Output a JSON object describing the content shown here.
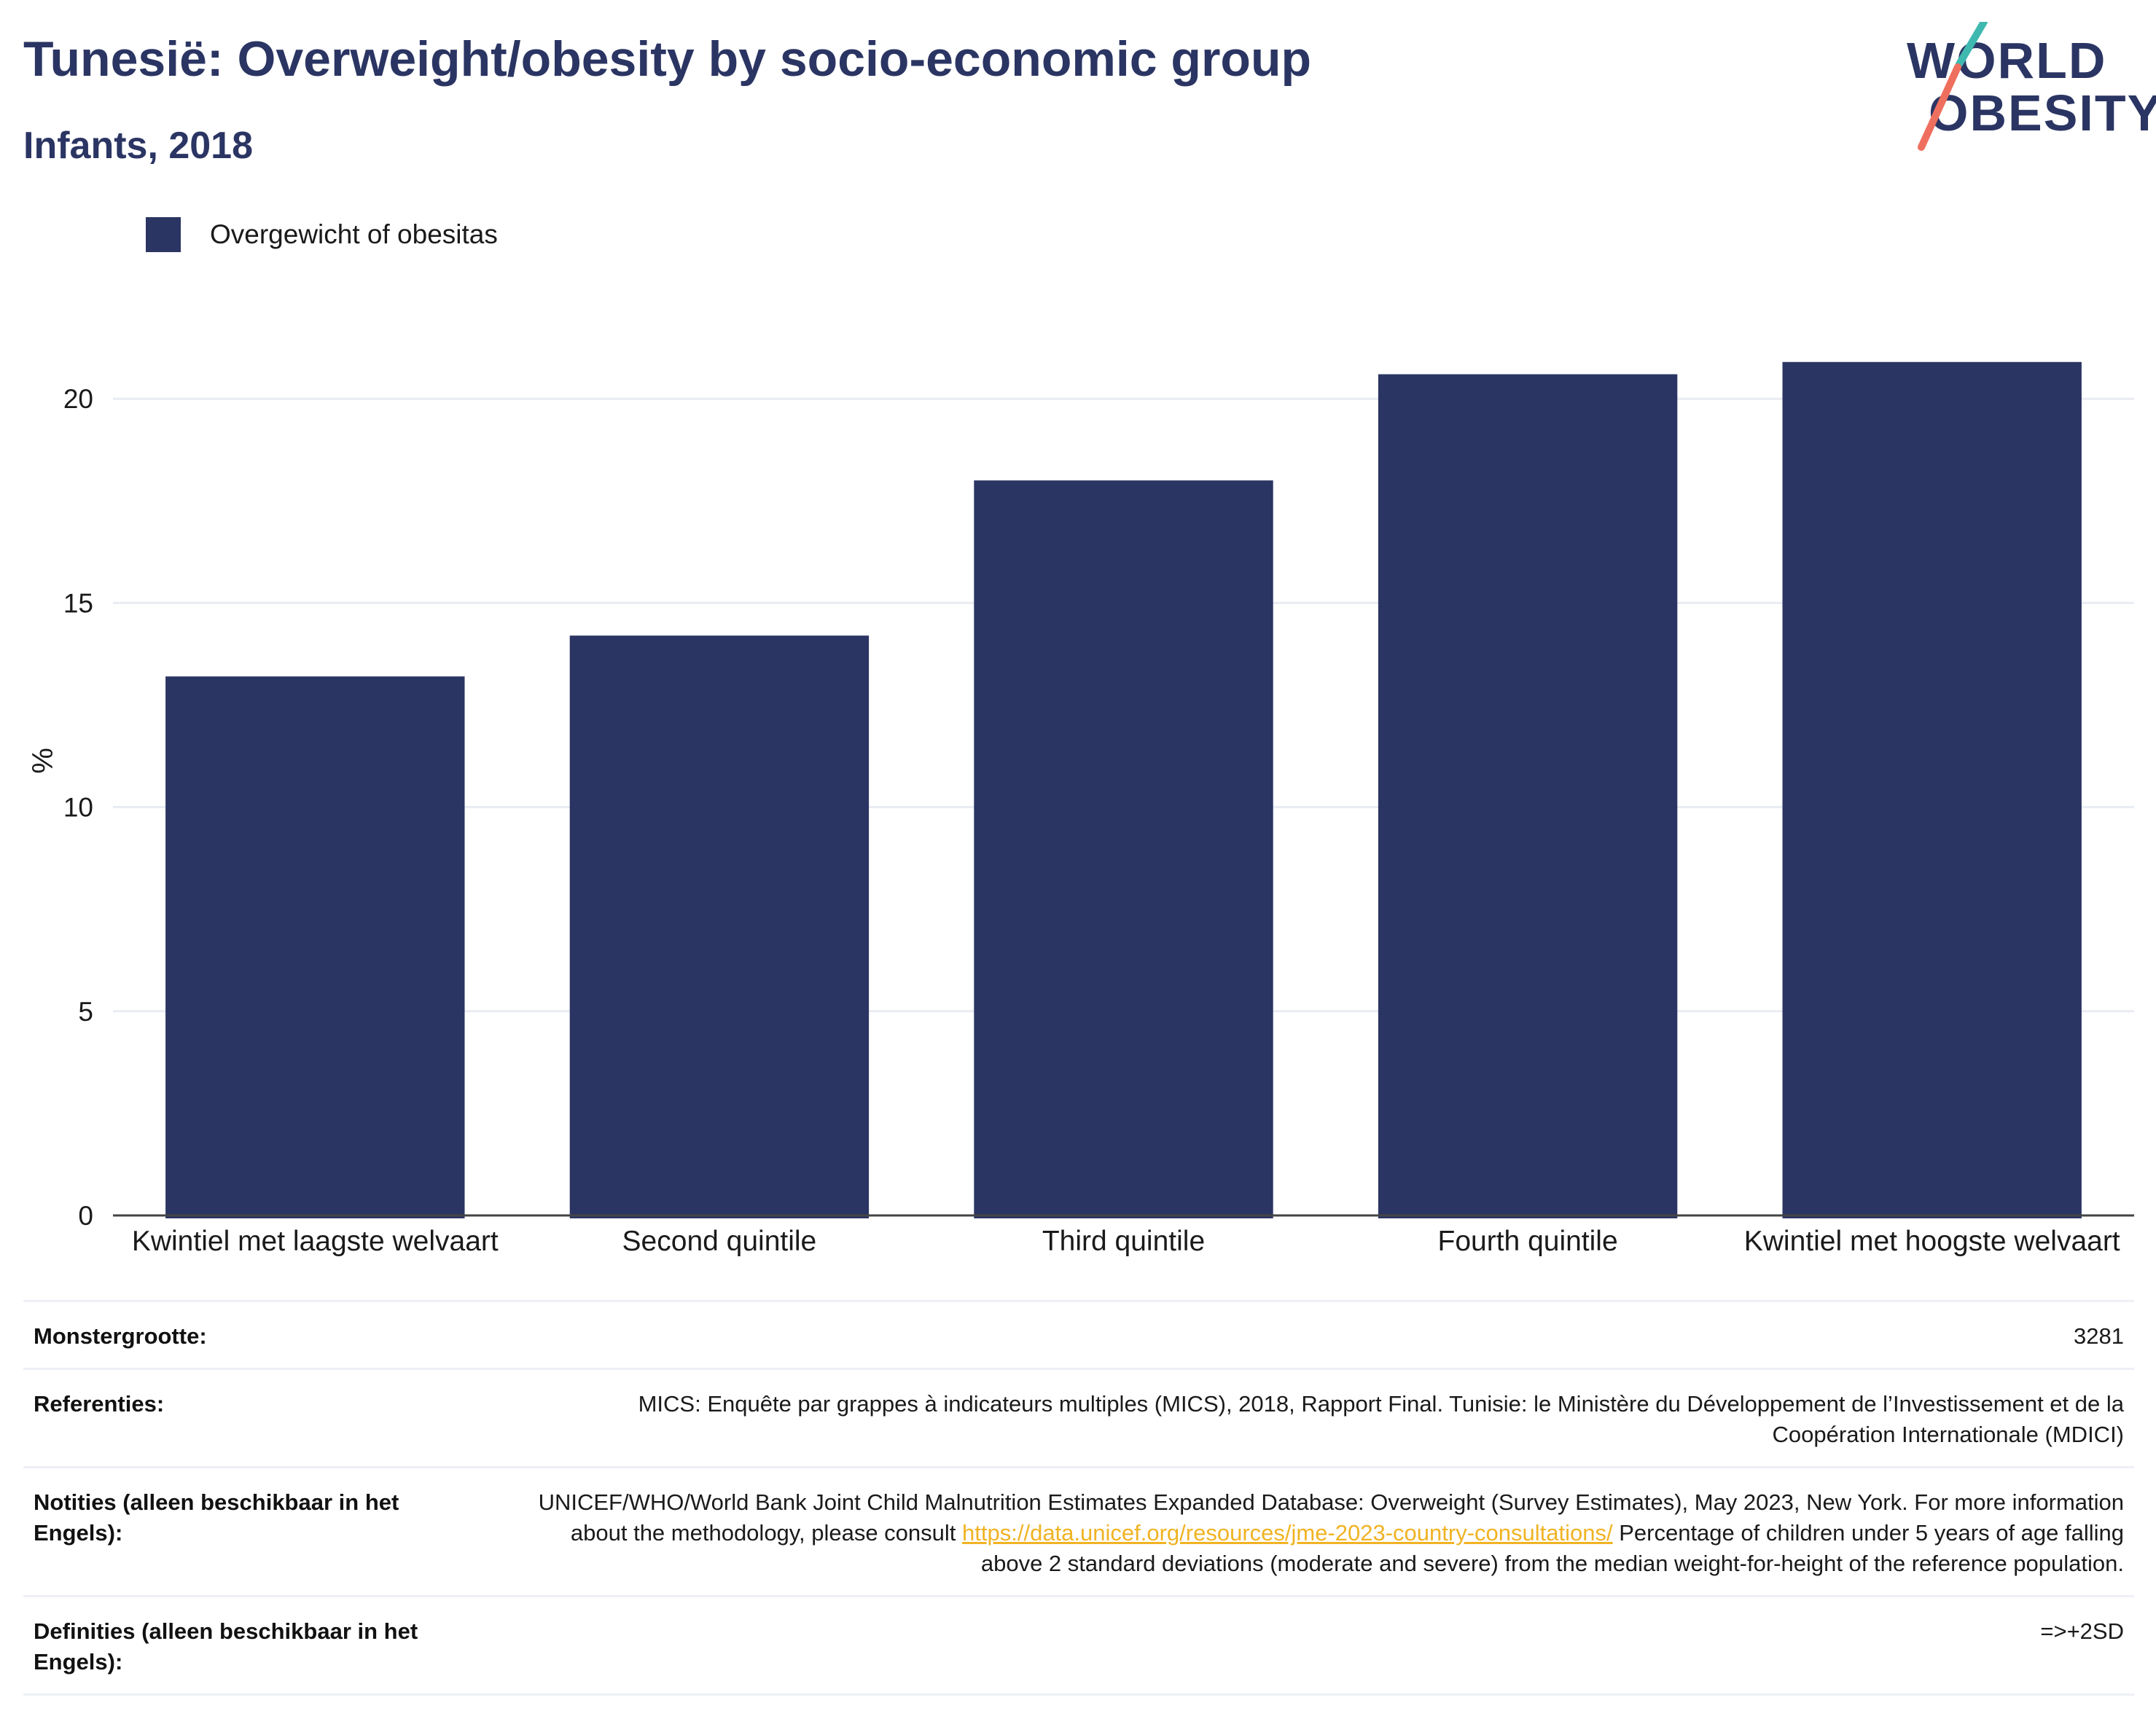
{
  "header": {
    "title": "Tunesië: Overweight/obesity by socio-economic group",
    "subtitle": "Infants, 2018"
  },
  "logo": {
    "line1": "WORLD",
    "line2": "OBESITY"
  },
  "colors": {
    "bar": "#2b3563",
    "title": "#2b3563",
    "link": "#f0b323",
    "logo_teal": "#3fb8b0",
    "logo_coral": "#ef6f5e"
  },
  "chart_data": {
    "type": "bar",
    "title": "Tunesië: Overweight/obesity by socio-economic group",
    "subtitle": "Infants, 2018",
    "categories": [
      "Kwintiel met laagste welvaart",
      "Second quintile",
      "Third quintile",
      "Fourth quintile",
      "Kwintiel met hoogste welvaart"
    ],
    "series": [
      {
        "name": "Overgewicht of obesitas",
        "values": [
          13.2,
          14.2,
          18.0,
          20.6,
          20.9
        ]
      }
    ],
    "xlabel": "",
    "ylabel": "%",
    "ylim": [
      0,
      22
    ],
    "yticks": [
      0,
      5,
      10,
      15,
      20
    ],
    "grid": true,
    "legend_position": "top-left"
  },
  "table": {
    "rows": [
      {
        "label": "Monstergrootte:",
        "value": "3281"
      },
      {
        "label": "Referenties:",
        "value": "MICS: Enquête par grappes à indicateurs multiples (MICS), 2018, Rapport Final. Tunisie: le Ministère du Développement de l’Investissement et de la Coopération Internationale (MDICI)"
      },
      {
        "label": "Notities (alleen beschikbaar in het Engels):",
        "value_before": "UNICEF/WHO/World Bank Joint Child Malnutrition Estimates Expanded Database: Overweight (Survey Estimates), May 2023, New York. For more information about the methodology, please consult ",
        "link": "https://data.unicef.org/resources/jme-2023-country-consultations/",
        "value_after": " Percentage of children under 5 years of age falling above 2 standard deviations (moderate and severe) from the median weight-for-height of the reference population."
      },
      {
        "label": "Definities (alleen beschikbaar in het Engels):",
        "value": "=>+2SD"
      }
    ]
  }
}
